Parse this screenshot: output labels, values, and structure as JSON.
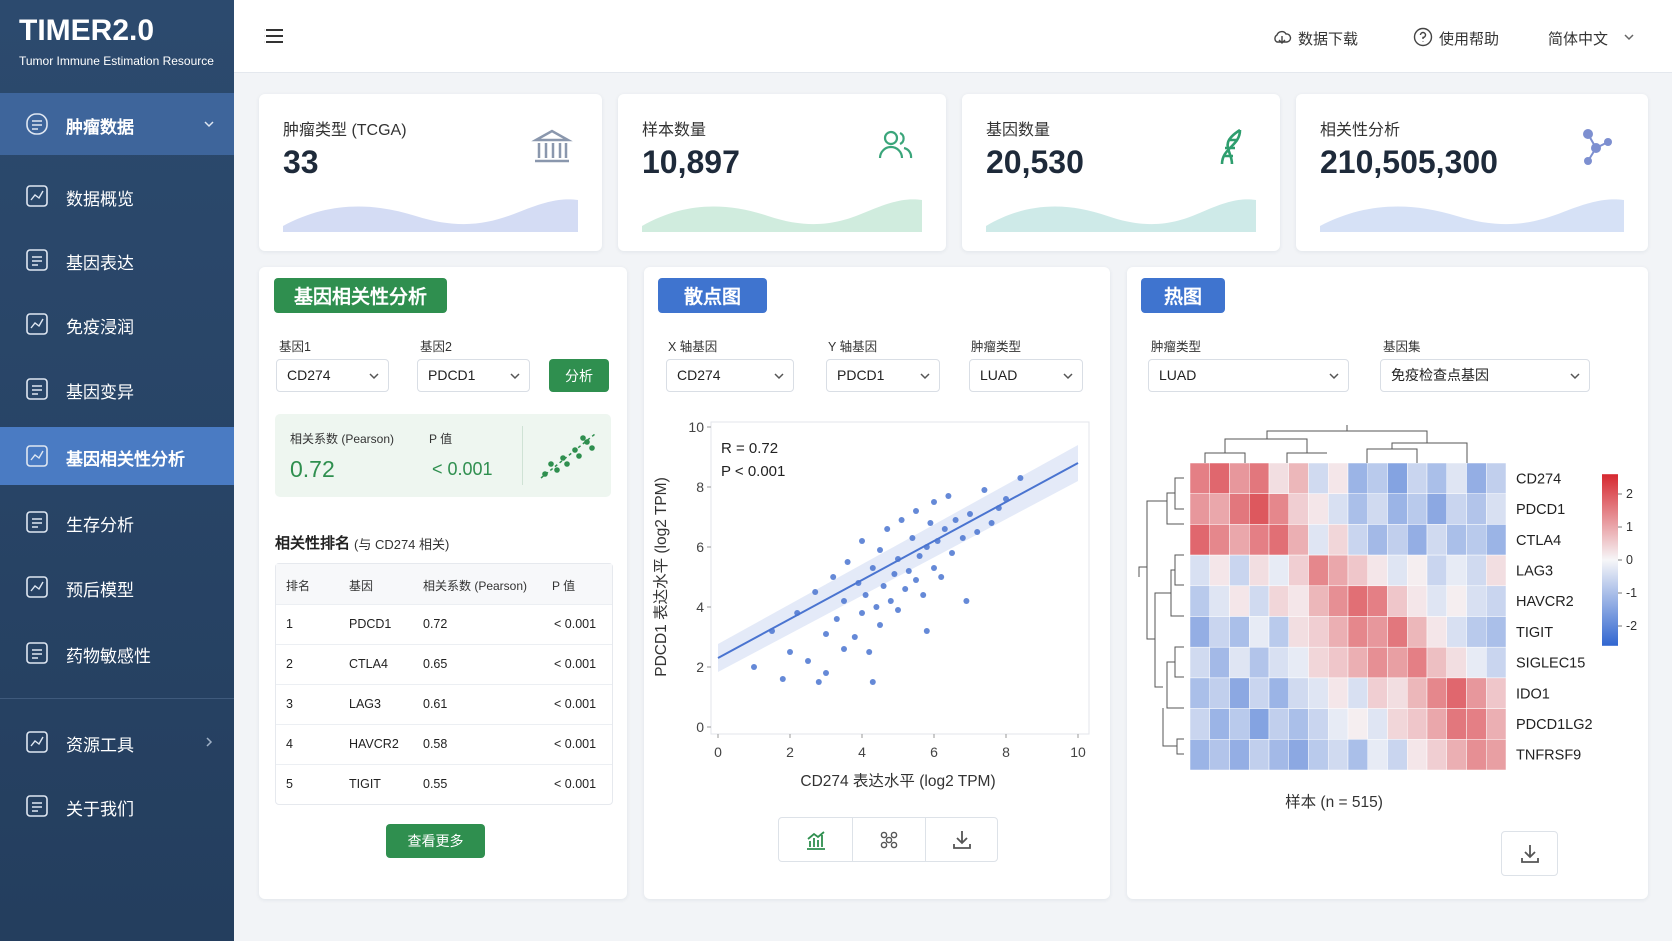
{
  "sidebar": {
    "title": "TIMER2.0",
    "subtitle": "Tumor Immune Estimation Resource",
    "nav": [
      "肿瘤数据",
      "数据概览",
      "基因表达",
      "免疫浸润",
      "基因变异",
      "基因相关性分析",
      "生存分析",
      "预后模型",
      "药物敏感性",
      "资源工具",
      "关于我们"
    ]
  },
  "topbar": {
    "links": [
      "数据下载",
      "使用帮助",
      "简体中文"
    ]
  },
  "stats": [
    {
      "label": "肿瘤类型 (TCGA)",
      "value": "33"
    },
    {
      "label": "样本数量",
      "value": "10,897"
    },
    {
      "label": "基因数量",
      "value": "20,530"
    },
    {
      "label": "相关性分析",
      "value": "210,505,300"
    }
  ],
  "correlation": {
    "title": "基因相关性分析",
    "gene1_label": "基因1",
    "gene1": "CD274",
    "gene2_label": "基因2",
    "gene2": "PDCD1",
    "button": "分析",
    "coef_label": "相关系数 (Pearson)",
    "p_label": "P 值",
    "coef": "0.72",
    "p": "< 0.001",
    "ranking_title": "相关性排名",
    "ranking_note": "(与 CD274 相关)",
    "table": {
      "headers": [
        "排名",
        "基因",
        "相关系数 (Pearson)",
        "P 值"
      ],
      "rows": [
        [
          "1",
          "PDCD1",
          "0.72",
          "< 0.001"
        ],
        [
          "2",
          "CTLA4",
          "0.65",
          "< 0.001"
        ],
        [
          "3",
          "LAG3",
          "0.61",
          "< 0.001"
        ],
        [
          "4",
          "HAVCR2",
          "0.58",
          "< 0.001"
        ],
        [
          "5",
          "TIGIT",
          "0.55",
          "< 0.001"
        ]
      ]
    },
    "more": "查看更多"
  },
  "chart_data": [
    {
      "type": "scatter",
      "title": "散点图",
      "controls": [
        {
          "label": "X 轴基因",
          "value": "CD274"
        },
        {
          "label": "Y 轴基因",
          "value": "PDCD1"
        },
        {
          "label": "肿瘤类型",
          "value": "LUAD"
        }
      ],
      "annotations": [
        "R = 0.72",
        "P < 0.001"
      ],
      "x_label": "CD274 表达水平 (log2 TPM)",
      "y_label": "PDCD1 表达水平 (log2 TPM)",
      "color": "#4a74d0",
      "x": [
        1.0,
        1.5,
        1.8,
        2.0,
        2.2,
        2.5,
        2.7,
        3.0,
        3.0,
        3.2,
        3.3,
        3.5,
        3.5,
        3.6,
        3.8,
        3.9,
        4.0,
        4.0,
        4.1,
        4.2,
        4.3,
        4.4,
        4.5,
        4.5,
        4.6,
        4.7,
        4.8,
        4.9,
        5.0,
        5.0,
        5.1,
        5.2,
        5.3,
        5.4,
        5.5,
        5.5,
        5.6,
        5.7,
        5.8,
        5.9,
        6.0,
        6.0,
        6.1,
        6.2,
        6.3,
        6.4,
        6.5,
        6.6,
        6.8,
        7.0,
        7.2,
        7.4,
        7.6,
        7.8,
        8.0,
        8.4,
        2.8,
        4.3,
        5.8,
        6.9
      ],
      "y": [
        2.0,
        3.2,
        1.6,
        2.5,
        3.8,
        2.2,
        4.5,
        3.1,
        1.8,
        5.0,
        3.6,
        4.2,
        2.6,
        5.5,
        3.0,
        4.8,
        6.2,
        3.8,
        4.4,
        2.5,
        5.3,
        4.0,
        5.9,
        3.4,
        4.7,
        6.6,
        4.2,
        5.1,
        5.6,
        3.9,
        6.9,
        4.6,
        5.2,
        6.3,
        4.9,
        7.2,
        5.7,
        4.4,
        6.0,
        6.8,
        5.3,
        7.5,
        6.2,
        5.0,
        6.6,
        7.7,
        5.8,
        6.9,
        6.3,
        7.1,
        6.5,
        7.9,
        6.8,
        7.3,
        7.6,
        8.3,
        1.5,
        1.5,
        3.2,
        4.2
      ],
      "fit": {
        "x": [
          0,
          10
        ],
        "y": [
          2.3,
          8.8
        ]
      },
      "xlim": [
        0,
        10
      ],
      "ylim": [
        0,
        10
      ],
      "xticks": [
        0,
        2,
        4,
        6,
        8,
        10
      ],
      "yticks": [
        0,
        2,
        4,
        6,
        8,
        10
      ]
    },
    {
      "type": "heatmap",
      "title": "热图",
      "controls": [
        {
          "label": "肿瘤类型",
          "value": "LUAD"
        },
        {
          "label": "基因集",
          "value": "免疫检查点基因"
        }
      ],
      "rows": [
        "CD274",
        "PDCD1",
        "CTLA4",
        "LAG3",
        "HAVCR2",
        "TIGIT",
        "SIGLEC15",
        "IDO1",
        "PDCD1LG2",
        "TNFRSF9"
      ],
      "values": [
        [
          1.5,
          1.8,
          1.2,
          1.6,
          0.3,
          0.8,
          -0.5,
          0.2,
          -1.2,
          -0.8,
          -1.5,
          -0.6,
          -1.0,
          -0.3,
          -1.3,
          -0.7
        ],
        [
          1.2,
          1.0,
          1.6,
          2.0,
          1.4,
          0.5,
          0.2,
          -0.4,
          -1.0,
          -0.5,
          -1.2,
          -0.8,
          -1.4,
          -0.6,
          -0.9,
          -0.4
        ],
        [
          1.8,
          1.4,
          1.0,
          1.5,
          1.7,
          0.9,
          -0.3,
          0.4,
          -0.6,
          -1.1,
          -0.7,
          -1.3,
          -0.5,
          -1.0,
          -0.8,
          -1.2
        ],
        [
          -0.4,
          0.2,
          -0.6,
          0.3,
          -0.2,
          0.5,
          1.4,
          1.0,
          0.6,
          0.2,
          -0.3,
          0.1,
          -0.6,
          -0.2,
          -0.5,
          0.3
        ],
        [
          -0.8,
          -0.3,
          0.2,
          -0.5,
          0.4,
          0.2,
          0.8,
          1.3,
          1.7,
          1.5,
          0.6,
          0.2,
          -0.3,
          0.1,
          -0.4,
          -0.6
        ],
        [
          -1.3,
          -0.6,
          -1.0,
          -0.2,
          -0.8,
          0.3,
          0.5,
          0.9,
          1.4,
          1.2,
          1.6,
          0.8,
          0.2,
          -0.4,
          -0.8,
          -1.0
        ],
        [
          -0.5,
          -1.1,
          -0.3,
          -0.9,
          -0.4,
          -0.2,
          0.4,
          0.6,
          0.9,
          1.3,
          1.1,
          1.5,
          0.7,
          0.3,
          -0.2,
          -0.6
        ],
        [
          -1.0,
          -0.7,
          -1.4,
          -0.6,
          -1.2,
          -0.5,
          -0.3,
          0.2,
          -0.4,
          0.5,
          0.3,
          0.8,
          1.4,
          1.8,
          1.2,
          0.6
        ],
        [
          -0.6,
          -1.2,
          -0.8,
          -1.5,
          -0.7,
          -1.0,
          -0.6,
          -0.2,
          0.1,
          -0.3,
          0.4,
          0.6,
          1.0,
          1.6,
          1.5,
          0.9
        ],
        [
          -1.2,
          -0.9,
          -1.3,
          -0.7,
          -1.1,
          -1.4,
          -0.8,
          -0.5,
          -1.0,
          -0.2,
          -0.6,
          0.2,
          0.5,
          0.9,
          1.3,
          1.1
        ]
      ],
      "x_label": "样本 (n = 515)",
      "clim": [
        -2.6,
        2.6
      ],
      "cticks": [
        2,
        1,
        0,
        -1,
        -2
      ]
    }
  ]
}
